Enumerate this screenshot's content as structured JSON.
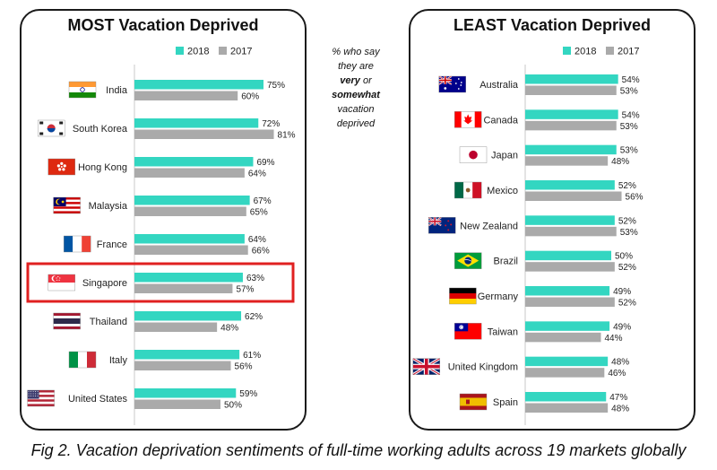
{
  "caption": "Fig 2. Vacation deprivation sentiments of full-time working adults across 19 markets globally",
  "note": {
    "line1": "% who say",
    "line2": "they are",
    "bold1": "very",
    "mid": " or",
    "bold2": "somewhat",
    "line5": "vacation",
    "line6": "deprived"
  },
  "colors": {
    "s2018": "#33d6c1",
    "s2017": "#aaaaaa",
    "highlight": "#e02020"
  },
  "chart_data": [
    {
      "type": "bar",
      "orientation": "horizontal",
      "title": "MOST Vacation Deprived",
      "legend": [
        "2018",
        "2017"
      ],
      "legend_position": "top",
      "categories": [
        "India",
        "South Korea",
        "Hong Kong",
        "Malaysia",
        "France",
        "Singapore",
        "Thailand",
        "Italy",
        "United States"
      ],
      "flags": [
        "india-flag-icon",
        "south-korea-flag-icon",
        "hong-kong-flag-icon",
        "malaysia-flag-icon",
        "france-flag-icon",
        "singapore-flag-icon",
        "thailand-flag-icon",
        "italy-flag-icon",
        "united-states-flag-icon"
      ],
      "highlighted_category": "Singapore",
      "series": [
        {
          "name": "2018",
          "values": [
            75,
            72,
            69,
            67,
            64,
            63,
            62,
            61,
            59
          ]
        },
        {
          "name": "2017",
          "values": [
            60,
            81,
            64,
            65,
            66,
            57,
            48,
            56,
            50
          ]
        }
      ],
      "value_format": "percent"
    },
    {
      "type": "bar",
      "orientation": "horizontal",
      "title": "LEAST Vacation Deprived",
      "legend": [
        "2018",
        "2017"
      ],
      "legend_position": "top",
      "categories": [
        "Australia",
        "Canada",
        "Japan",
        "Mexico",
        "New Zealand",
        "Brazil",
        "Germany",
        "Taiwan",
        "United Kingdom",
        "Spain"
      ],
      "flags": [
        "australia-flag-icon",
        "canada-flag-icon",
        "japan-flag-icon",
        "mexico-flag-icon",
        "new-zealand-flag-icon",
        "brazil-flag-icon",
        "germany-flag-icon",
        "taiwan-flag-icon",
        "united-kingdom-flag-icon",
        "spain-flag-icon"
      ],
      "series": [
        {
          "name": "2018",
          "values": [
            54,
            54,
            53,
            52,
            52,
            50,
            49,
            49,
            48,
            47
          ]
        },
        {
          "name": "2017",
          "values": [
            53,
            53,
            48,
            56,
            53,
            52,
            52,
            44,
            46,
            48
          ]
        }
      ],
      "value_format": "percent"
    }
  ]
}
